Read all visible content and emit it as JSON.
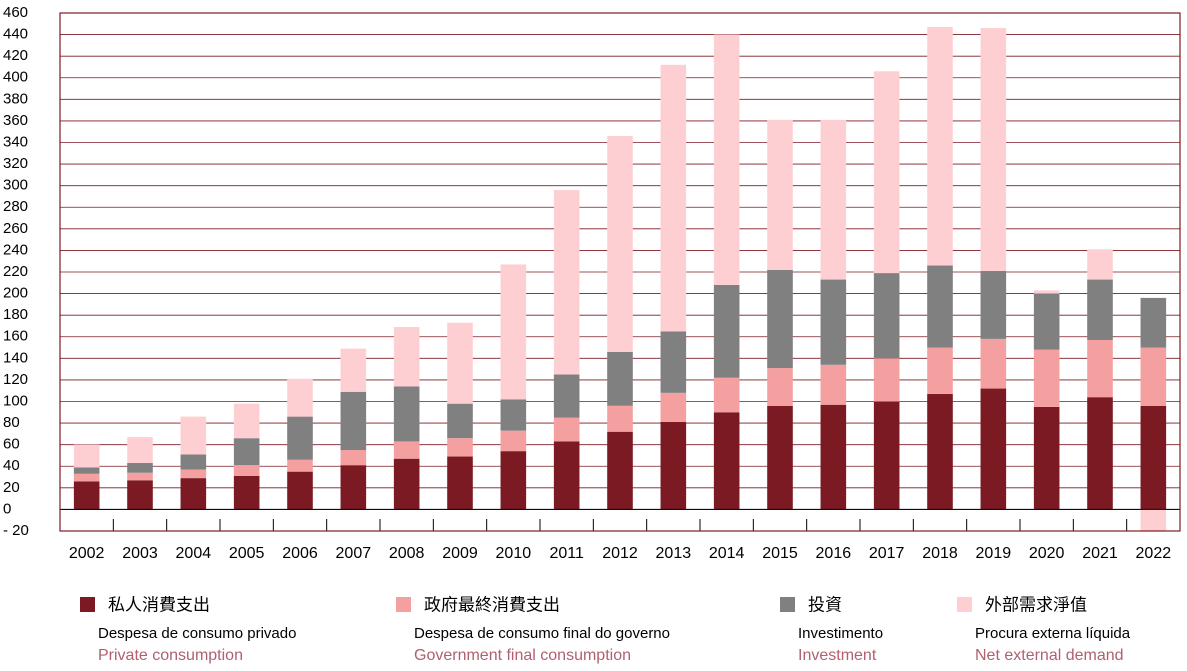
{
  "chart_data": {
    "type": "stacked_bar",
    "categories": [
      "2002",
      "2003",
      "2004",
      "2005",
      "2006",
      "2007",
      "2008",
      "2009",
      "2010",
      "2011",
      "2012",
      "2013",
      "2014",
      "2015",
      "2016",
      "2017",
      "2018",
      "2019",
      "2020",
      "2021",
      "2022"
    ],
    "series": [
      {
        "name": "私人消費支出",
        "name_pt": "Despesa de consumo privado",
        "name_en": "Private consumption",
        "color": "#7b1a22",
        "values": [
          26,
          27,
          29,
          31,
          35,
          41,
          47,
          49,
          54,
          63,
          72,
          81,
          90,
          96,
          97,
          100,
          107,
          112,
          95,
          104,
          96
        ]
      },
      {
        "name": "政府最終消費支出",
        "name_pt": "Despesa de consumo final do governo",
        "name_en": "Government final consumption",
        "color": "#f4a0a0",
        "values": [
          7,
          7,
          8,
          10,
          11,
          14,
          16,
          17,
          19,
          22,
          24,
          27,
          32,
          35,
          37,
          40,
          43,
          46,
          53,
          53,
          54
        ]
      },
      {
        "name": "投資",
        "name_pt": "Investimento",
        "name_en": "Investment",
        "color": "#808080",
        "values": [
          6,
          9,
          14,
          25,
          40,
          54,
          51,
          32,
          29,
          40,
          50,
          57,
          86,
          91,
          79,
          79,
          76,
          63,
          52,
          56,
          46
        ]
      },
      {
        "name": "外部需求淨值",
        "name_pt": "Procura externa líquida",
        "name_en": "Net external demand",
        "color": "#fdcfd2",
        "values": [
          21,
          24,
          35,
          32,
          35,
          40,
          55,
          75,
          125,
          171,
          200,
          247,
          232,
          139,
          148,
          187,
          221,
          225,
          3,
          28,
          -20
        ]
      }
    ],
    "ylim": [
      -20,
      460
    ],
    "yticks": [
      {
        "value": -20,
        "label": "- 20"
      },
      0,
      20,
      40,
      60,
      80,
      100,
      120,
      140,
      160,
      180,
      200,
      220,
      240,
      260,
      280,
      300,
      320,
      340,
      360,
      380,
      400,
      420,
      440,
      460
    ],
    "grid": true
  }
}
